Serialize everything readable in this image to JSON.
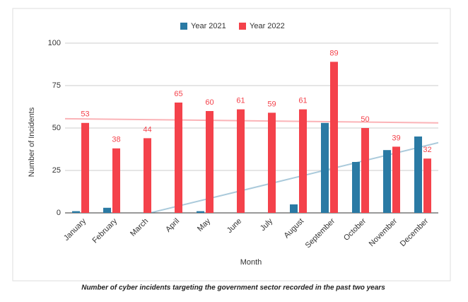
{
  "chart_data": {
    "type": "bar",
    "xlabel": "Month",
    "ylabel": "Number of Incidents",
    "categories": [
      "January",
      "February",
      "March",
      "April",
      "May",
      "June",
      "July",
      "August",
      "September",
      "October",
      "November",
      "December"
    ],
    "series": [
      {
        "name": "Year 2021",
        "color": "#2a7aa4",
        "values": [
          1,
          3,
          0,
          0,
          1,
          0,
          0,
          5,
          53,
          30,
          37,
          45
        ],
        "trendline": true,
        "data_labels": false
      },
      {
        "name": "Year 2022",
        "color": "#f4424b",
        "values": [
          53,
          38,
          44,
          65,
          60,
          61,
          59,
          61,
          89,
          50,
          39,
          32
        ],
        "trendline": true,
        "data_labels": true
      }
    ],
    "ylim": [
      0,
      100
    ],
    "yticks": [
      0,
      25,
      50,
      75,
      100
    ],
    "grid": true,
    "legend": "top"
  },
  "caption": "Number of cyber incidents targeting the government sector recorded in the past two years"
}
